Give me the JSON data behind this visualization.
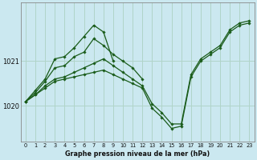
{
  "title": "Graphe pression niveau de la mer (hPa)",
  "background_color": "#cbe8f0",
  "grid_color": "#b0d4c8",
  "line_color": "#1a5c1a",
  "xlim": [
    -0.5,
    23.5
  ],
  "ylim": [
    1019.2,
    1022.3
  ],
  "yticks": [
    1020,
    1021
  ],
  "xticks": [
    0,
    1,
    2,
    3,
    4,
    5,
    6,
    7,
    8,
    9,
    10,
    11,
    12,
    13,
    14,
    15,
    16,
    17,
    18,
    19,
    20,
    21,
    22,
    23
  ],
  "series": [
    {
      "x": [
        0,
        1,
        2,
        3,
        4,
        5,
        6,
        7,
        8,
        9,
        10,
        11,
        12,
        13,
        14,
        15,
        16,
        17,
        18,
        19,
        20,
        21,
        22,
        23
      ],
      "y": [
        1020.1,
        1020.25,
        1020.4,
        1020.55,
        1020.6,
        1020.65,
        1020.7,
        1020.75,
        1020.8,
        1020.7,
        1020.6,
        1020.5,
        1020.4,
        1019.95,
        1019.75,
        1019.5,
        1019.55,
        1020.65,
        1021.0,
        1021.15,
        1021.3,
        1021.65,
        1021.8,
        1021.85
      ]
    },
    {
      "x": [
        0,
        1,
        2,
        3,
        4,
        5,
        6,
        7,
        8,
        9,
        10,
        11,
        12,
        13,
        14,
        15,
        16,
        17,
        18,
        19,
        20,
        21,
        22,
        23
      ],
      "y": [
        1020.1,
        1020.25,
        1020.45,
        1020.6,
        1020.65,
        1020.75,
        1020.85,
        1020.95,
        1021.05,
        1020.9,
        1020.75,
        1020.6,
        1020.45,
        1020.05,
        1019.85,
        1019.6,
        1019.6,
        1020.7,
        1021.05,
        1021.2,
        1021.35,
        1021.7,
        1021.85,
        1021.9
      ]
    },
    {
      "x": [
        0,
        1,
        2,
        3,
        4,
        5,
        6,
        7,
        8,
        9,
        10,
        11,
        12
      ],
      "y": [
        1020.1,
        1020.3,
        1020.55,
        1020.85,
        1020.9,
        1021.1,
        1021.2,
        1021.5,
        1021.35,
        1021.15,
        1021.0,
        1020.85,
        1020.6
      ]
    },
    {
      "x": [
        0,
        1,
        2,
        3,
        4,
        5,
        6,
        7,
        8,
        9
      ],
      "y": [
        1020.1,
        1020.35,
        1020.6,
        1021.05,
        1021.1,
        1021.3,
        1021.55,
        1021.8,
        1021.65,
        1021.0
      ]
    }
  ]
}
